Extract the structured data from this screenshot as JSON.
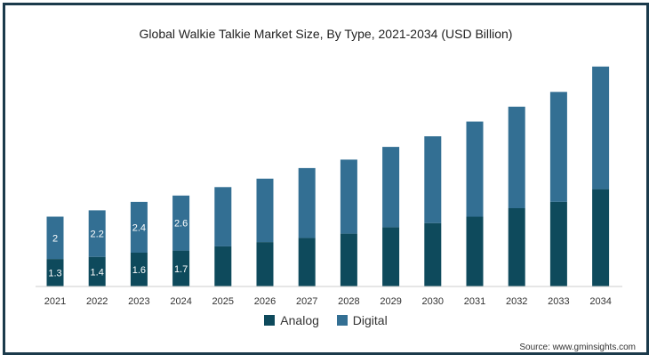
{
  "chart_data": {
    "type": "bar",
    "stacked": true,
    "title": "Global Walkie Talkie Market Size, By Type, 2021-2034 (USD Billion)",
    "categories": [
      "2021",
      "2022",
      "2023",
      "2024",
      "2025",
      "2026",
      "2027",
      "2028",
      "2029",
      "2030",
      "2031",
      "2032",
      "2033",
      "2034"
    ],
    "series": [
      {
        "name": "Analog",
        "color": "#0e4a5c",
        "values": [
          1.3,
          1.4,
          1.6,
          1.7,
          1.9,
          2.1,
          2.3,
          2.5,
          2.8,
          3.0,
          3.3,
          3.7,
          4.0,
          4.6
        ],
        "labels": [
          "1.3",
          "1.4",
          "1.6",
          "1.7",
          "",
          "",
          "",
          "",
          "",
          "",
          "",
          "",
          "",
          ""
        ]
      },
      {
        "name": "Digital",
        "color": "#336f93",
        "values": [
          2.0,
          2.2,
          2.4,
          2.6,
          2.8,
          3.0,
          3.3,
          3.5,
          3.8,
          4.1,
          4.5,
          4.8,
          5.2,
          5.8
        ],
        "labels": [
          "2",
          "2.2",
          "2.4",
          "2.6",
          "",
          "",
          "",
          "",
          "",
          "",
          "",
          "",
          "",
          ""
        ]
      }
    ],
    "ylim": [
      0,
      10.6
    ],
    "grid": false,
    "legend_position": "bottom"
  },
  "source": "Source: www.gminsights.com"
}
